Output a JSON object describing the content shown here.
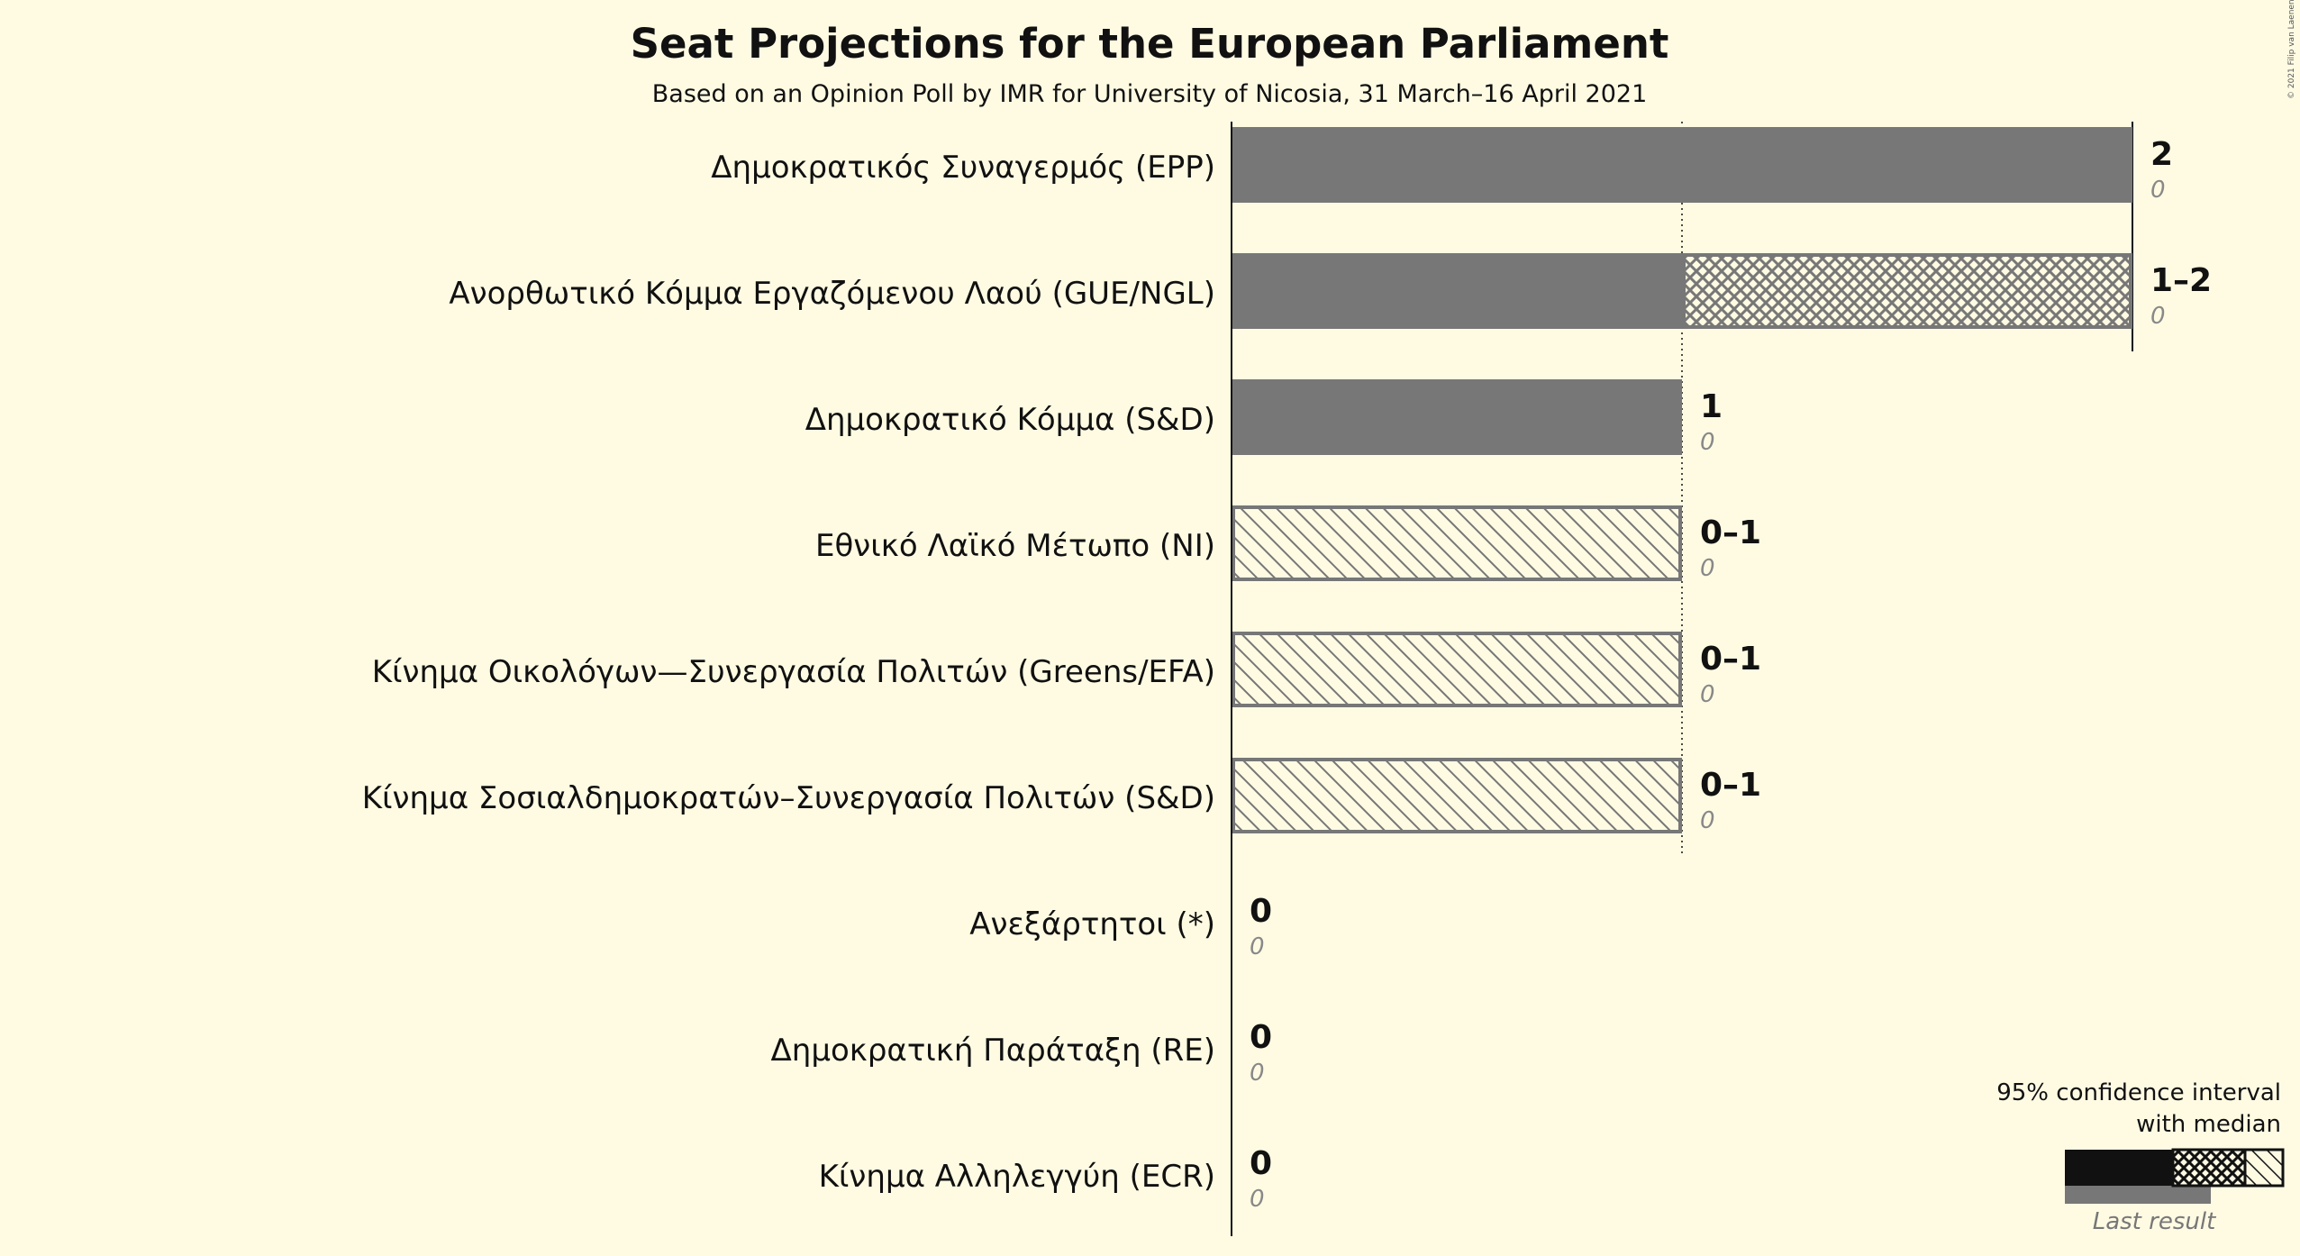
{
  "title": "Seat Projections for the European Parliament",
  "subtitle": "Based on an Opinion Poll by IMR for University of Nicosia, 31 March–16 April 2021",
  "copyright": "© 2021 Filip van Laenen",
  "legend": {
    "line1": "95% confidence interval",
    "line2": "with median",
    "last_result": "Last result"
  },
  "colors": {
    "background": "#fffbe3",
    "bar": "#777777",
    "hatch": "#777777",
    "text": "#111111",
    "last_result": "#888888"
  },
  "chart_data": {
    "type": "bar",
    "orientation": "horizontal",
    "title": "Seat Projections for the European Parliament",
    "subtitle": "Based on an Opinion Poll by IMR for University of Nicosia, 31 March–16 April 2021",
    "xlim": [
      0,
      2
    ],
    "gridlines": [
      1,
      2
    ],
    "parties": [
      {
        "name": "Δημοκρατικός Συναγερμός (EPP)",
        "low": 2,
        "median": 2,
        "high": 2,
        "range_label": "2",
        "last_result": 0
      },
      {
        "name": "Ανορθωτικό Κόμμα Εργαζόμενου Λαού (GUE/NGL)",
        "low": 1,
        "median": 2,
        "high": 2,
        "range_label": "1–2",
        "last_result": 0
      },
      {
        "name": "Δημοκρατικό Κόμμα (S&D)",
        "low": 1,
        "median": 1,
        "high": 1,
        "range_label": "1",
        "last_result": 0
      },
      {
        "name": "Εθνικό Λαϊκό Μέτωπο (NI)",
        "low": 0,
        "median": 0,
        "high": 1,
        "range_label": "0–1",
        "last_result": 0
      },
      {
        "name": "Κίνημα Οικολόγων—Συνεργασία Πολιτών (Greens/EFA)",
        "low": 0,
        "median": 0,
        "high": 1,
        "range_label": "0–1",
        "last_result": 0
      },
      {
        "name": "Κίνημα Σοσιαλδημοκρατών–Συνεργασία Πολιτών (S&D)",
        "low": 0,
        "median": 0,
        "high": 1,
        "range_label": "0–1",
        "last_result": 0
      },
      {
        "name": "Ανεξάρτητοι (*)",
        "low": 0,
        "median": 0,
        "high": 0,
        "range_label": "0",
        "last_result": 0
      },
      {
        "name": "Δημοκρατική Παράταξη (RE)",
        "low": 0,
        "median": 0,
        "high": 0,
        "range_label": "0",
        "last_result": 0
      },
      {
        "name": "Κίνημα Αλληλεγγύη (ECR)",
        "low": 0,
        "median": 0,
        "high": 0,
        "range_label": "0",
        "last_result": 0
      }
    ]
  }
}
